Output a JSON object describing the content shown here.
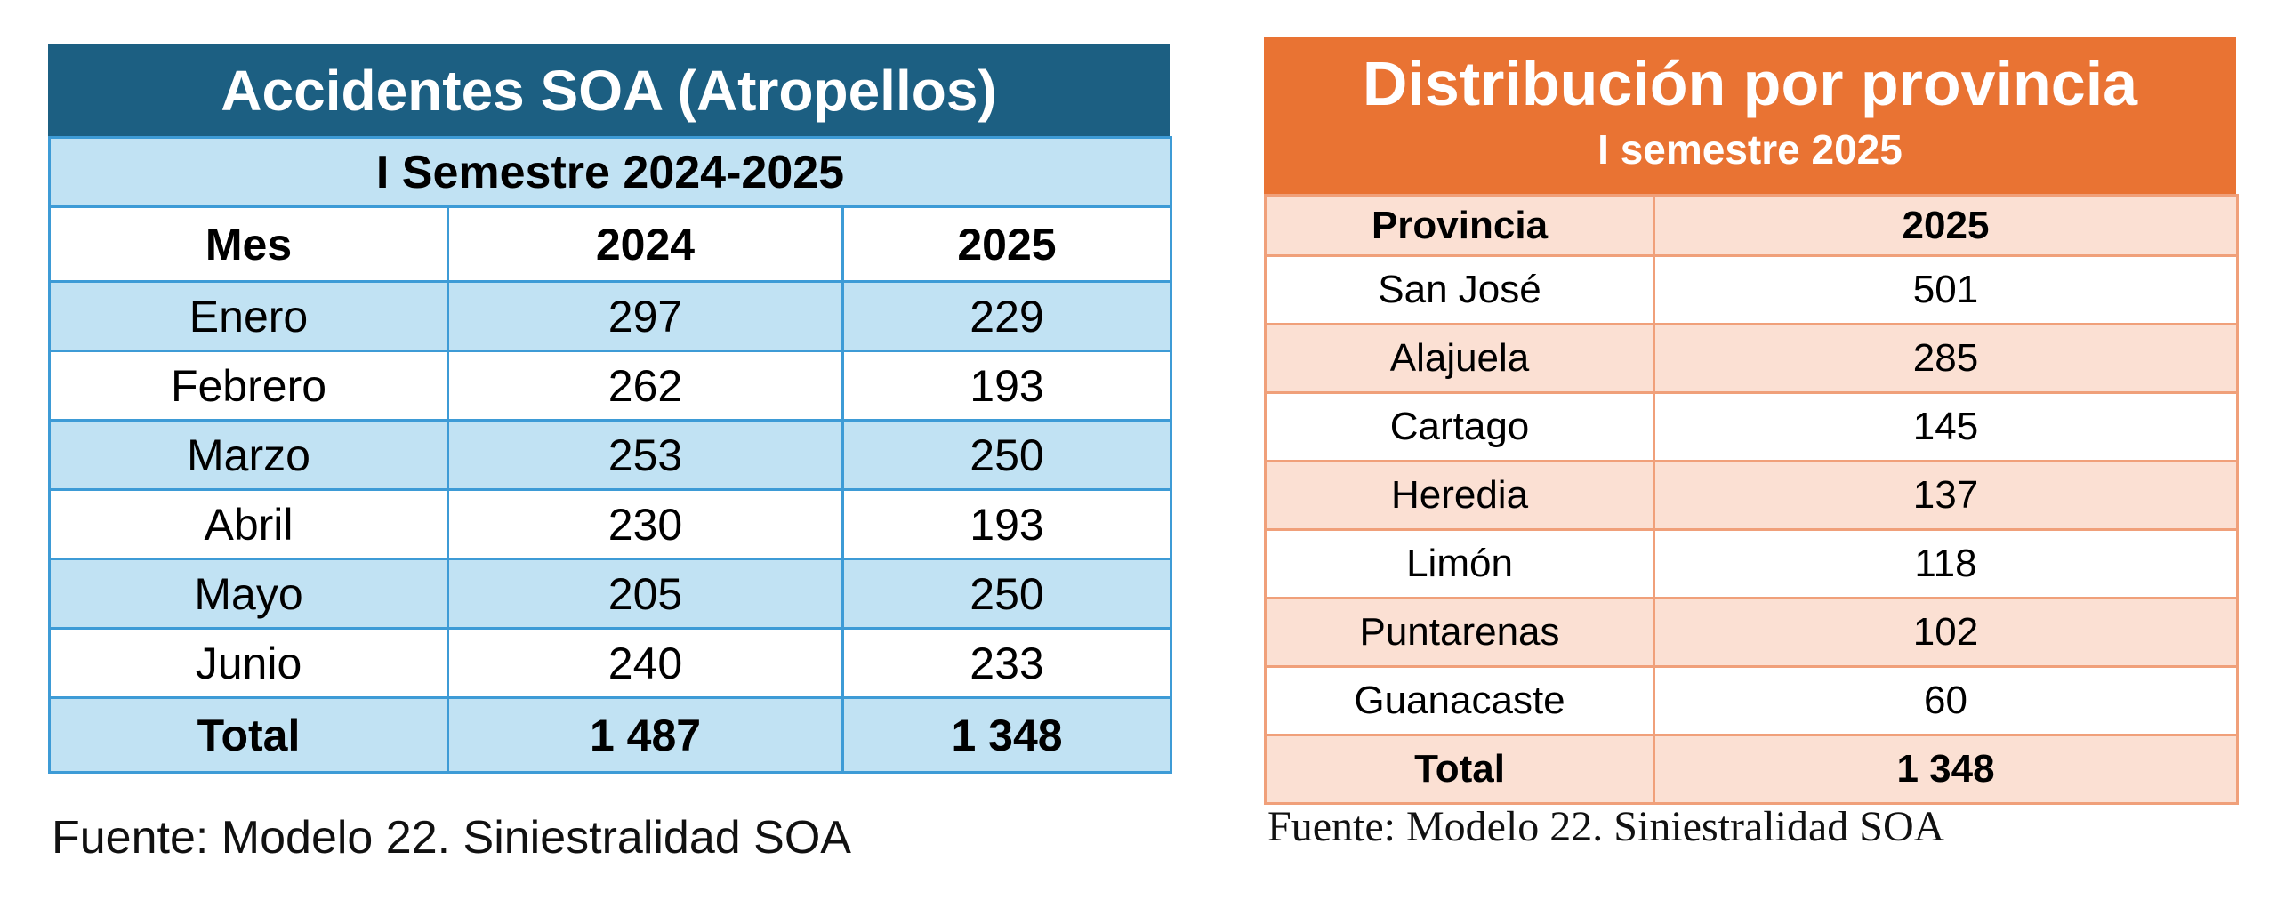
{
  "soa_table": {
    "title": "Accidentes SOA (Atropellos)",
    "subtitle": "I Semestre 2024-2025",
    "columns": [
      "Mes",
      "2024",
      "2025"
    ],
    "rows": [
      [
        "Enero",
        "297",
        "229"
      ],
      [
        "Febrero",
        "262",
        "193"
      ],
      [
        "Marzo",
        "253",
        "250"
      ],
      [
        "Abril",
        "230",
        "193"
      ],
      [
        "Mayo",
        "205",
        "250"
      ],
      [
        "Junio",
        "240",
        "233"
      ]
    ],
    "total": [
      "Total",
      "1 487",
      "1 348"
    ],
    "source": "Fuente: Modelo 22. Siniestralidad SOA",
    "colors": {
      "title_bg": "#1c5f82",
      "band_bg": "#c1e2f3",
      "border": "#3d9bd6"
    }
  },
  "prov_table": {
    "title": "Distribución por provincia",
    "subtitle": "I semestre 2025",
    "columns": [
      "Provincia",
      "2025"
    ],
    "rows": [
      [
        "San José",
        "501"
      ],
      [
        "Alajuela",
        "285"
      ],
      [
        "Cartago",
        "145"
      ],
      [
        "Heredia",
        "137"
      ],
      [
        "Limón",
        "118"
      ],
      [
        "Puntarenas",
        "102"
      ],
      [
        "Guanacaste",
        "60"
      ]
    ],
    "total": [
      "Total",
      "1 348"
    ],
    "source": "Fuente: Modelo 22. Siniestralidad SOA",
    "colors": {
      "title_bg": "#e97333",
      "band_bg": "#fbe0d3",
      "border": "#f0a07a"
    }
  }
}
